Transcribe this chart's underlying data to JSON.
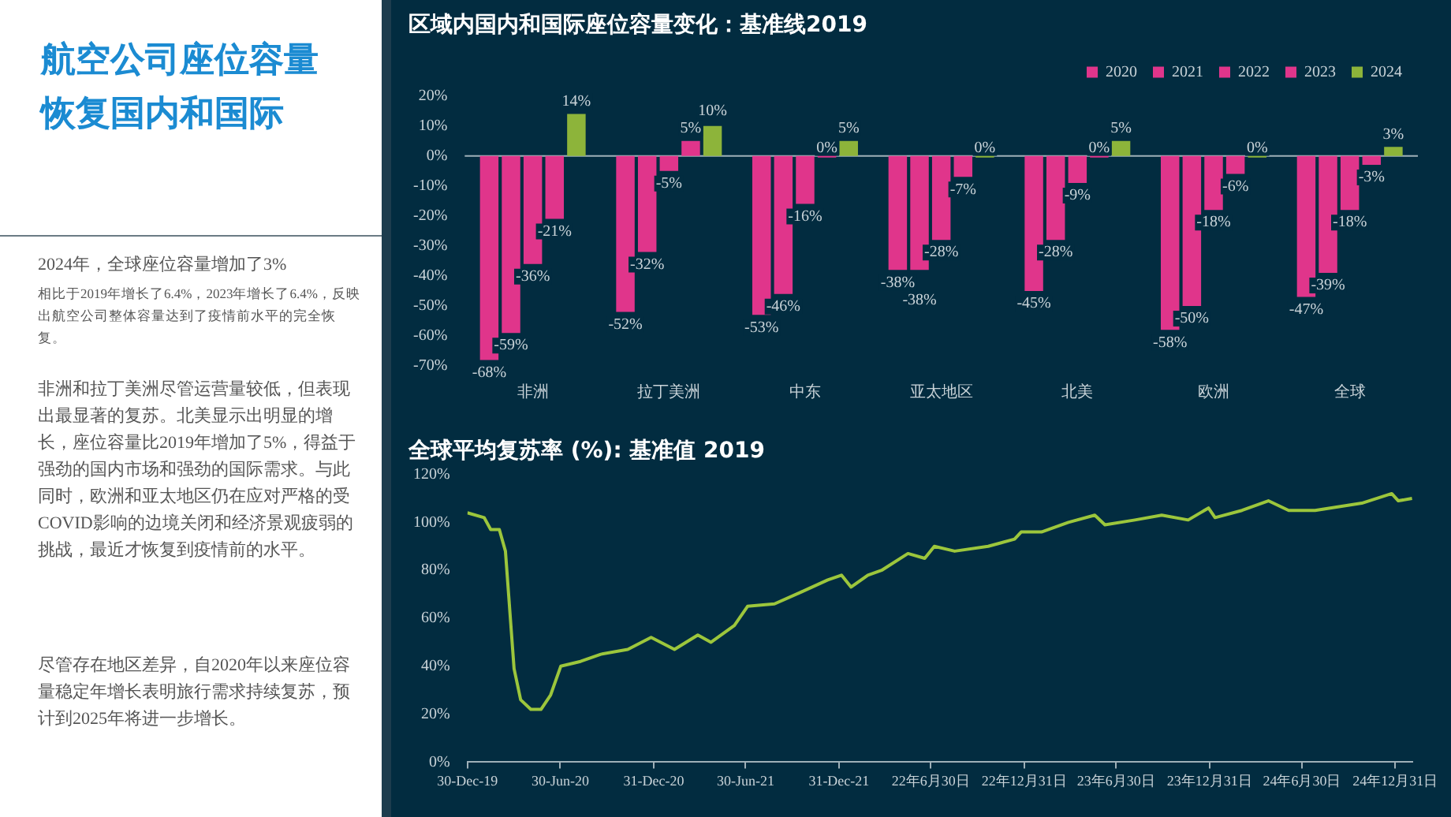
{
  "chart_data": [
    {
      "type": "other",
      "title": "航空公司座位容量恢复国内和国际",
      "annotations": [
        "2024年，全球座位容量增加了3%",
        "相比于2019年增长了6.4%，2023年增长了6.4%，反映出航空公司整体容量达到了疫情前水平的完全恢复。",
        "非洲和拉丁美洲尽管运营量较低，但表现出最显著的复苏。北美显示出明显的增长，座位容量比2019年增加了5%，得益于强劲的国内市场和强劲的国际需求。与此同时，欧洲和亚太地区仍在应对严格的受COVID影响的边境关闭和经济景观疲弱的挑战，最近才恢复到疫情前的水平。",
        "尽管存在地区差异，自2020年以来座位容量稳定年增长表明旅行需求持续复苏，预计到2025年将进一步增长。"
      ]
    },
    {
      "type": "bar",
      "title": "区域内国内和国际座位容量变化：基准线2019",
      "categories": [
        "非洲",
        "拉丁美洲",
        "中东",
        "亚太地区",
        "北美",
        "欧洲",
        "全球"
      ],
      "ylim": [
        -70,
        20
      ],
      "yticks": [
        {
          "value": -70,
          "label": "-70%"
        },
        {
          "value": -60,
          "label": "-60%"
        },
        {
          "value": -50,
          "label": "-50%"
        },
        {
          "value": -40,
          "label": "-40%"
        },
        {
          "value": -30,
          "label": "-30%"
        },
        {
          "value": -20,
          "label": "-20%"
        },
        {
          "value": -10,
          "label": "-10%"
        },
        {
          "value": 0,
          "label": "0%"
        },
        {
          "value": 10,
          "label": "10%"
        },
        {
          "value": 20,
          "label": "20%"
        }
      ],
      "legend": "top right",
      "grid": false,
      "ref_lines": [
        {
          "axis": "y",
          "value": 0,
          "color": "#9fb0b8"
        }
      ],
      "series": [
        {
          "name": "2020",
          "color": "#e0358b",
          "values": [
            -68,
            -52,
            -53,
            -38,
            -45,
            -58,
            -47
          ],
          "value_labels": [
            "-68%",
            "-52%",
            "-53%",
            "-38%",
            "-45%",
            "-58%",
            "-47%"
          ]
        },
        {
          "name": "2021",
          "color": "#e0358b",
          "values": [
            -59,
            -32,
            -46,
            -38,
            -28,
            -50,
            -39
          ],
          "value_labels": [
            "-59%",
            "-32%",
            "-46%",
            "-38%",
            "-28%",
            "-50%",
            "-39%"
          ]
        },
        {
          "name": "2022",
          "color": "#e0358b",
          "values": [
            -36,
            -5,
            -16,
            -28,
            -9,
            -18,
            -18
          ],
          "value_labels": [
            "-36%",
            "-5%",
            "-16%",
            "-28%",
            "-9%",
            "-18%",
            "-18%"
          ]
        },
        {
          "name": "2023",
          "color": "#e0358b",
          "values": [
            -21,
            5,
            0,
            -7,
            0,
            -6,
            -3
          ],
          "value_labels": [
            "-21%",
            "5%",
            "0%",
            "-7%",
            "0%",
            "-6%",
            "-3%"
          ]
        },
        {
          "name": "2024",
          "color": "#8db43a",
          "values": [
            14,
            10,
            5,
            0,
            5,
            0,
            3
          ],
          "value_labels": [
            "14%",
            "10%",
            "5%",
            "0%",
            "5%",
            "0%",
            "3%"
          ]
        }
      ]
    },
    {
      "type": "line",
      "title": "全球平均复苏率 (%): 基准值 2019",
      "xlim": [
        "2019-12-30",
        "2025-02-03"
      ],
      "xticks": [
        {
          "value": "2019-12-30",
          "label": "30-Dec-19"
        },
        {
          "value": "2020-06-30",
          "label": "30-Jun-20"
        },
        {
          "value": "2020-12-31",
          "label": "31-Dec-20"
        },
        {
          "value": "2021-06-30",
          "label": "30-Jun-21"
        },
        {
          "value": "2021-12-31",
          "label": "31-Dec-21"
        },
        {
          "value": "2022-06-30",
          "label": "22年6月30日"
        },
        {
          "value": "2022-12-31",
          "label": "22年12月31日"
        },
        {
          "value": "2023-06-30",
          "label": "23年6月30日"
        },
        {
          "value": "2023-12-31",
          "label": "23年12月31日"
        },
        {
          "value": "2024-06-30",
          "label": "24年6月30日"
        },
        {
          "value": "2024-12-31",
          "label": "24年12月31日"
        }
      ],
      "ylim": [
        0,
        120
      ],
      "yticks": [
        {
          "value": 0,
          "label": "0%"
        },
        {
          "value": 20,
          "label": "20%"
        },
        {
          "value": 40,
          "label": "40%"
        },
        {
          "value": 60,
          "label": "60%"
        },
        {
          "value": 80,
          "label": "80%"
        },
        {
          "value": 100,
          "label": "100%"
        },
        {
          "value": 120,
          "label": "120%"
        }
      ],
      "grid": false,
      "legend": false,
      "series": [
        {
          "color": "#9cc63c",
          "x": [
            "2019-12-30",
            "2020-02-01",
            "2020-02-14",
            "2020-03-02",
            "2020-03-14",
            "2020-03-31",
            "2020-04-13",
            "2020-05-03",
            "2020-05-23",
            "2020-06-11",
            "2020-07-01",
            "2020-08-09",
            "2020-09-18",
            "2020-11-10",
            "2020-12-26",
            "2021-02-10",
            "2021-03-28",
            "2021-04-23",
            "2021-06-08",
            "2021-07-04",
            "2021-08-26",
            "2021-10-18",
            "2021-12-09",
            "2022-01-05",
            "2022-01-24",
            "2022-02-26",
            "2022-03-25",
            "2022-05-16",
            "2022-06-18",
            "2022-07-07",
            "2022-08-16",
            "2022-10-21",
            "2022-12-12",
            "2022-12-25",
            "2023-02-03",
            "2023-03-28",
            "2023-05-19",
            "2023-06-08",
            "2023-08-06",
            "2023-09-28",
            "2023-11-19",
            "2023-12-29",
            "2024-01-11",
            "2024-03-04",
            "2024-04-25",
            "2024-06-04",
            "2024-07-26",
            "2024-10-26",
            "2024-12-24",
            "2025-01-06",
            "2025-02-02"
          ],
          "values": [
            104,
            102,
            97,
            97,
            88,
            39,
            26,
            22,
            22,
            28,
            40,
            42,
            45,
            47,
            52,
            47,
            53,
            50,
            57,
            65,
            66,
            71,
            76,
            78,
            73,
            78,
            80,
            87,
            85,
            90,
            88,
            90,
            93,
            96,
            96,
            100,
            103,
            99,
            101,
            103,
            101,
            106,
            102,
            105,
            109,
            105,
            105,
            108,
            112,
            109,
            110
          ]
        }
      ]
    }
  ]
}
